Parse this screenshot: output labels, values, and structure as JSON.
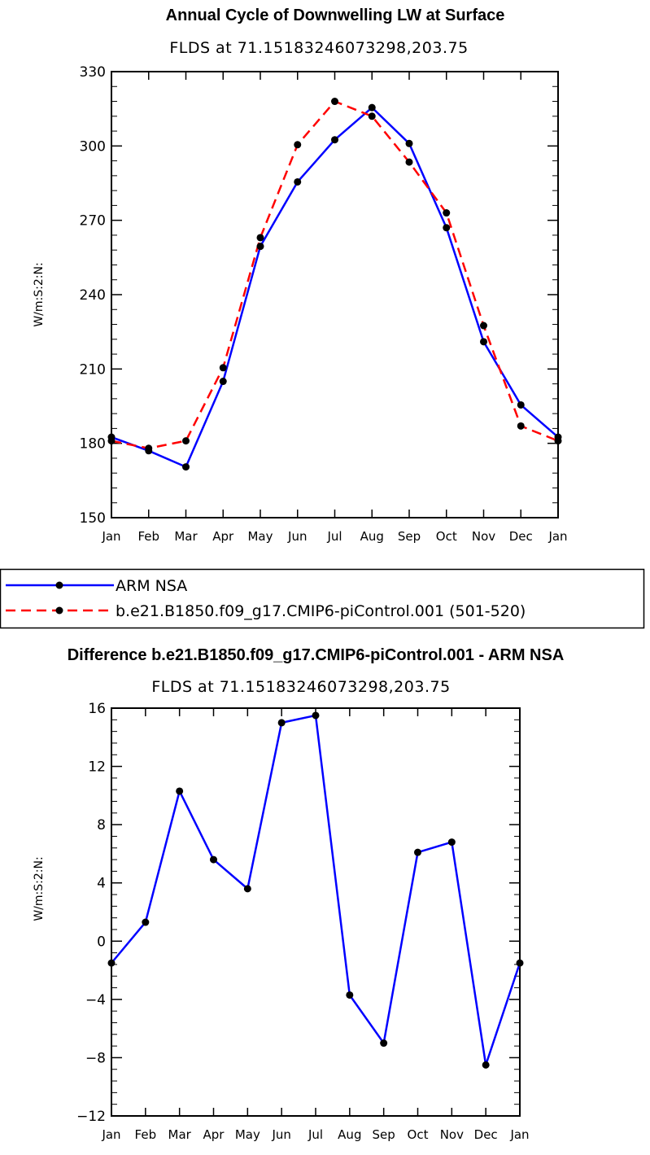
{
  "chart_data": [
    {
      "type": "line",
      "title": "Annual Cycle of Downwelling LW at Surface",
      "subtitle": "FLDS at 71.15183246073298,203.75",
      "ylabel": "W/m:S:2:N:",
      "xlabel": "",
      "categories": [
        "Jan",
        "Feb",
        "Mar",
        "Apr",
        "May",
        "Jun",
        "Jul",
        "Aug",
        "Sep",
        "Oct",
        "Nov",
        "Dec",
        "Jan"
      ],
      "ylim": [
        150,
        330
      ],
      "yticks": [
        "150",
        "180",
        "210",
        "240",
        "270",
        "300",
        "330"
      ],
      "series": [
        {
          "name": "ARM NSA",
          "color": "#0000ff",
          "dash": "solid",
          "values": [
            182.5,
            177.0,
            170.5,
            205.0,
            259.5,
            285.5,
            302.5,
            315.5,
            301.0,
            267.0,
            221.0,
            195.5,
            182.5
          ]
        },
        {
          "name": "b.e21.B1850.f09_g17.CMIP6-piControl.001 (501-520)",
          "color": "#ff0000",
          "dash": "dashed",
          "values": [
            181.0,
            178.0,
            181.0,
            210.5,
            263.0,
            300.5,
            318.0,
            312.0,
            293.5,
            273.0,
            227.5,
            187.0,
            181.0
          ]
        }
      ],
      "legend": {
        "entries": [
          "ARM NSA",
          "b.e21.B1850.f09_g17.CMIP6-piControl.001 (501-520)"
        ],
        "placement": "below"
      }
    },
    {
      "type": "line",
      "title": "Difference b.e21.B1850.f09_g17.CMIP6-piControl.001 - ARM NSA",
      "subtitle": "FLDS at 71.15183246073298,203.75",
      "ylabel": "W/m:S:2:N:",
      "xlabel": "",
      "categories": [
        "Jan",
        "Feb",
        "Mar",
        "Apr",
        "May",
        "Jun",
        "Jul",
        "Aug",
        "Sep",
        "Oct",
        "Nov",
        "Dec",
        "Jan"
      ],
      "ylim": [
        -12,
        16
      ],
      "yticks": [
        "−12",
        "−8",
        "−4",
        "0",
        "4",
        "8",
        "12",
        "16"
      ],
      "series": [
        {
          "name": "Difference",
          "color": "#0000ff",
          "dash": "solid",
          "values": [
            -1.5,
            1.3,
            10.3,
            5.6,
            3.6,
            15.0,
            15.5,
            -3.7,
            -7.0,
            6.1,
            6.8,
            -8.5,
            -1.5
          ]
        }
      ]
    }
  ]
}
